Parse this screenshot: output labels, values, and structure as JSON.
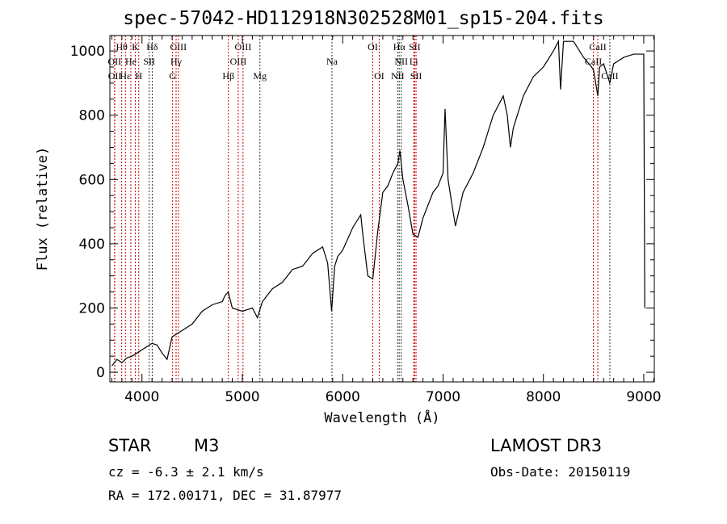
{
  "chart_data": {
    "type": "line",
    "title": "spec-57042-HD112918N302528M01_sp15-204.fits",
    "xlabel": "Wavelength (Å)",
    "ylabel": "Flux (relative)",
    "xlim": [
      3680,
      9105
    ],
    "ylim": [
      -30,
      1048
    ],
    "xticks": [
      4000,
      5000,
      6000,
      7000,
      8000,
      9000
    ],
    "yticks": [
      0,
      200,
      400,
      600,
      800,
      1000
    ],
    "grid": false,
    "series": [
      {
        "name": "spectrum",
        "x": [
          3700,
          3750,
          3800,
          3850,
          3900,
          3950,
          4000,
          4050,
          4100,
          4150,
          4200,
          4250,
          4300,
          4350,
          4400,
          4500,
          4600,
          4700,
          4800,
          4830,
          4860,
          4900,
          4950,
          5000,
          5100,
          5150,
          5200,
          5300,
          5400,
          5500,
          5600,
          5700,
          5800,
          5850,
          5890,
          5920,
          5950,
          6000,
          6100,
          6180,
          6200,
          6250,
          6300,
          6350,
          6400,
          6450,
          6500,
          6550,
          6570,
          6600,
          6650,
          6700,
          6750,
          6800,
          6900,
          6950,
          7000,
          7020,
          7050,
          7100,
          7124,
          7200,
          7300,
          7400,
          7500,
          7600,
          7640,
          7671,
          7700,
          7800,
          7900,
          8000,
          8100,
          8150,
          8171,
          8200,
          8300,
          8400,
          8480,
          8500,
          8542,
          8560,
          8600,
          8662,
          8700,
          8800,
          8900,
          9000,
          9005,
          9010
        ],
        "y": [
          20,
          40,
          30,
          45,
          50,
          60,
          70,
          80,
          90,
          85,
          60,
          40,
          110,
          120,
          130,
          150,
          190,
          210,
          220,
          240,
          250,
          200,
          195,
          190,
          200,
          170,
          220,
          260,
          280,
          320,
          330,
          370,
          390,
          340,
          190,
          330,
          360,
          380,
          450,
          490,
          430,
          300,
          290,
          440,
          560,
          580,
          620,
          650,
          690,
          600,
          520,
          430,
          420,
          480,
          560,
          580,
          620,
          820,
          600,
          500,
          455,
          560,
          620,
          700,
          800,
          860,
          800,
          700,
          760,
          860,
          920,
          950,
          1000,
          1030,
          880,
          1030,
          1030,
          980,
          950,
          940,
          860,
          950,
          960,
          900,
          960,
          980,
          990,
          990,
          600,
          200
        ]
      }
    ],
    "lines": [
      {
        "label": "Hθ",
        "wl": 3798,
        "row": 0,
        "color": "#cc0000"
      },
      {
        "label": "K",
        "wl": 3934,
        "row": 0,
        "color": "#cc0000"
      },
      {
        "label": "Hδ",
        "wl": 4102,
        "row": 0,
        "color": "#333333"
      },
      {
        "label": "OIII",
        "wl": 4363,
        "row": 0,
        "color": "#cc0000"
      },
      {
        "label": "OIII",
        "wl": 5007,
        "row": 0,
        "color": "#cc0000"
      },
      {
        "label": "OI",
        "wl": 6300,
        "row": 0,
        "color": "#cc0000"
      },
      {
        "label": "Hα",
        "wl": 6563,
        "row": 0,
        "color": "#333333"
      },
      {
        "label": "SII",
        "wl": 6717,
        "row": 0,
        "color": "#cc0000"
      },
      {
        "label": "CaII",
        "wl": 8542,
        "row": 0,
        "color": "#cc0000"
      },
      {
        "label": "OII",
        "wl": 3727,
        "row": 1,
        "color": "#cc0000"
      },
      {
        "label": "He",
        "wl": 3889,
        "row": 1,
        "color": "#cc0000"
      },
      {
        "label": "SII",
        "wl": 4072,
        "row": 1,
        "color": "#333333"
      },
      {
        "label": "Hγ",
        "wl": 4340,
        "row": 1,
        "color": "#cc0000"
      },
      {
        "label": "OIII",
        "wl": 4959,
        "row": 1,
        "color": "#cc0000"
      },
      {
        "label": "Na",
        "wl": 5893,
        "row": 1,
        "color": "#333333"
      },
      {
        "label": "NII",
        "wl": 6583,
        "row": 1,
        "color": "#333333"
      },
      {
        "label": "Li",
        "wl": 6708,
        "row": 1,
        "color": "#cc0000"
      },
      {
        "label": "CaII",
        "wl": 8498,
        "row": 1,
        "color": "#cc0000"
      },
      {
        "label": "OII",
        "wl": 3729,
        "row": 2,
        "color": "#cc0000"
      },
      {
        "label": "Hε",
        "wl": 3835,
        "row": 2,
        "color": "#cc0000"
      },
      {
        "label": "H",
        "wl": 3968,
        "row": 2,
        "color": "#cc0000"
      },
      {
        "label": "G",
        "wl": 4305,
        "row": 2,
        "color": "#cc0000"
      },
      {
        "label": "Hβ",
        "wl": 4861,
        "row": 2,
        "color": "#cc0000"
      },
      {
        "label": "Mg",
        "wl": 5175,
        "row": 2,
        "color": "#333333"
      },
      {
        "label": "OI",
        "wl": 6364,
        "row": 2,
        "color": "#cc0000"
      },
      {
        "label": "NII",
        "wl": 6548,
        "row": 2,
        "color": "#333333"
      },
      {
        "label": "SII",
        "wl": 6731,
        "row": 2,
        "color": "#cc0000"
      },
      {
        "label": "CaII",
        "wl": 8662,
        "row": 2,
        "color": "#333333"
      }
    ]
  },
  "info": {
    "class": "STAR",
    "subclass": "M3",
    "cz": "cz = -6.3 ± 2.1 km/s",
    "radec": "RA = 172.00171, DEC =  31.87977",
    "survey": "LAMOST DR3",
    "obsdate": "Obs-Date: 20150119"
  }
}
